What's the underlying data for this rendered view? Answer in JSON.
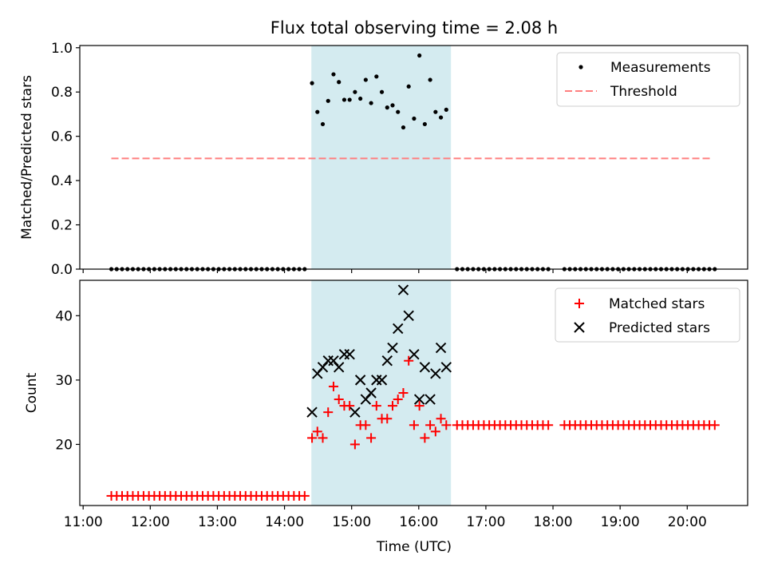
{
  "chart_data": {
    "type": "scatter",
    "title": "Flux total observing time = 2.08 h",
    "xlabel": "Time (UTC)",
    "x_unit": "hours UTC",
    "xlim": [
      10.95,
      20.9
    ],
    "x_ticks": [
      {
        "value": 11,
        "label": "11:00"
      },
      {
        "value": 12,
        "label": "12:00"
      },
      {
        "value": 13,
        "label": "13:00"
      },
      {
        "value": 14,
        "label": "14:00"
      },
      {
        "value": 15,
        "label": "15:00"
      },
      {
        "value": 16,
        "label": "16:00"
      },
      {
        "value": 17,
        "label": "17:00"
      },
      {
        "value": 18,
        "label": "18:00"
      },
      {
        "value": 19,
        "label": "19:00"
      },
      {
        "value": 20,
        "label": "20:00"
      }
    ],
    "observing_window": {
      "start": 14.4,
      "end": 16.48,
      "color": "#d4ebf0"
    },
    "top_panel": {
      "ylabel": "Matched/Predicted stars",
      "ylim": [
        0.0,
        1.01
      ],
      "y_ticks": [
        "0.0",
        "0.2",
        "0.4",
        "0.6",
        "0.8",
        "1.0"
      ],
      "legend": [
        "Measurements",
        "Threshold"
      ],
      "threshold": {
        "value": 0.5,
        "x_start": 11.42,
        "x_end": 20.38,
        "color": "#ff7f7f"
      },
      "measurements": [
        [
          11.42,
          0
        ],
        [
          11.5,
          0
        ],
        [
          11.58,
          0
        ],
        [
          11.66,
          0
        ],
        [
          11.74,
          0
        ],
        [
          11.82,
          0
        ],
        [
          11.9,
          0
        ],
        [
          11.98,
          0
        ],
        [
          12.06,
          0
        ],
        [
          12.14,
          0
        ],
        [
          12.22,
          0
        ],
        [
          12.3,
          0
        ],
        [
          12.38,
          0
        ],
        [
          12.46,
          0
        ],
        [
          12.54,
          0
        ],
        [
          12.62,
          0
        ],
        [
          12.7,
          0
        ],
        [
          12.78,
          0
        ],
        [
          12.86,
          0
        ],
        [
          12.94,
          0
        ],
        [
          13.02,
          0
        ],
        [
          13.1,
          0
        ],
        [
          13.18,
          0
        ],
        [
          13.26,
          0
        ],
        [
          13.34,
          0
        ],
        [
          13.42,
          0
        ],
        [
          13.5,
          0
        ],
        [
          13.58,
          0
        ],
        [
          13.66,
          0
        ],
        [
          13.74,
          0
        ],
        [
          13.82,
          0
        ],
        [
          13.9,
          0
        ],
        [
          13.98,
          0
        ],
        [
          14.06,
          0
        ],
        [
          14.14,
          0
        ],
        [
          14.22,
          0
        ],
        [
          14.3,
          0
        ],
        [
          14.41,
          0.84
        ],
        [
          14.49,
          0.71
        ],
        [
          14.57,
          0.655
        ],
        [
          14.65,
          0.76
        ],
        [
          14.73,
          0.88
        ],
        [
          14.81,
          0.845
        ],
        [
          14.89,
          0.765
        ],
        [
          14.97,
          0.765
        ],
        [
          15.05,
          0.8
        ],
        [
          15.13,
          0.77
        ],
        [
          15.21,
          0.855
        ],
        [
          15.29,
          0.75
        ],
        [
          15.37,
          0.87
        ],
        [
          15.45,
          0.8
        ],
        [
          15.53,
          0.73
        ],
        [
          15.61,
          0.74
        ],
        [
          15.69,
          0.71
        ],
        [
          15.77,
          0.64
        ],
        [
          15.85,
          0.825
        ],
        [
          15.93,
          0.68
        ],
        [
          16.01,
          0.965
        ],
        [
          16.09,
          0.655
        ],
        [
          16.17,
          0.855
        ],
        [
          16.25,
          0.71
        ],
        [
          16.33,
          0.685
        ],
        [
          16.41,
          0.72
        ],
        [
          16.57,
          0
        ],
        [
          16.65,
          0
        ],
        [
          16.73,
          0
        ],
        [
          16.81,
          0
        ],
        [
          16.89,
          0
        ],
        [
          16.97,
          0
        ],
        [
          17.05,
          0
        ],
        [
          17.13,
          0
        ],
        [
          17.21,
          0
        ],
        [
          17.29,
          0
        ],
        [
          17.37,
          0
        ],
        [
          17.45,
          0
        ],
        [
          17.53,
          0
        ],
        [
          17.61,
          0
        ],
        [
          17.69,
          0
        ],
        [
          17.77,
          0
        ],
        [
          17.85,
          0
        ],
        [
          17.93,
          0
        ],
        [
          18.17,
          0
        ],
        [
          18.25,
          0
        ],
        [
          18.33,
          0
        ],
        [
          18.41,
          0
        ],
        [
          18.49,
          0
        ],
        [
          18.57,
          0
        ],
        [
          18.65,
          0
        ],
        [
          18.73,
          0
        ],
        [
          18.81,
          0
        ],
        [
          18.89,
          0
        ],
        [
          18.97,
          0
        ],
        [
          19.05,
          0
        ],
        [
          19.13,
          0
        ],
        [
          19.21,
          0
        ],
        [
          19.29,
          0
        ],
        [
          19.37,
          0
        ],
        [
          19.45,
          0
        ],
        [
          19.53,
          0
        ],
        [
          19.61,
          0
        ],
        [
          19.69,
          0
        ],
        [
          19.77,
          0
        ],
        [
          19.85,
          0
        ],
        [
          19.93,
          0
        ],
        [
          20.01,
          0
        ],
        [
          20.09,
          0
        ],
        [
          20.17,
          0
        ],
        [
          20.25,
          0
        ],
        [
          20.33,
          0
        ],
        [
          20.41,
          0
        ]
      ]
    },
    "bottom_panel": {
      "ylabel": "Count",
      "ylim": [
        10.5,
        45.5
      ],
      "y_ticks": [
        {
          "value": 20,
          "label": "20"
        },
        {
          "value": 30,
          "label": "30"
        },
        {
          "value": 40,
          "label": "40"
        }
      ],
      "legend": [
        "Matched stars",
        "Predicted stars"
      ],
      "series": [
        {
          "name": "Matched stars",
          "marker": "+",
          "color": "#ff0000",
          "runs": [
            {
              "start": 11.42,
              "end": 14.3,
              "step": 0.08,
              "value": 12
            },
            {
              "start": 16.57,
              "end": 17.93,
              "step": 0.08,
              "value": 23
            },
            {
              "start": 18.17,
              "end": 20.41,
              "step": 0.08,
              "value": 23
            }
          ],
          "points": [
            [
              14.41,
              21
            ],
            [
              14.49,
              22
            ],
            [
              14.57,
              21
            ],
            [
              14.65,
              25
            ],
            [
              14.73,
              29
            ],
            [
              14.81,
              27
            ],
            [
              14.89,
              26
            ],
            [
              14.97,
              26
            ],
            [
              15.05,
              20
            ],
            [
              15.13,
              23
            ],
            [
              15.21,
              23
            ],
            [
              15.29,
              21
            ],
            [
              15.37,
              26
            ],
            [
              15.45,
              24
            ],
            [
              15.53,
              24
            ],
            [
              15.61,
              26
            ],
            [
              15.69,
              27
            ],
            [
              15.77,
              28
            ],
            [
              15.85,
              33
            ],
            [
              15.93,
              23
            ],
            [
              16.01,
              26
            ],
            [
              16.09,
              21
            ],
            [
              16.17,
              23
            ],
            [
              16.25,
              22
            ],
            [
              16.33,
              24
            ],
            [
              16.41,
              23
            ]
          ]
        },
        {
          "name": "Predicted stars",
          "marker": "x",
          "color": "#000000",
          "points": [
            [
              14.41,
              25
            ],
            [
              14.49,
              31
            ],
            [
              14.57,
              32
            ],
            [
              14.65,
              33
            ],
            [
              14.73,
              33
            ],
            [
              14.81,
              32
            ],
            [
              14.89,
              34
            ],
            [
              14.97,
              34
            ],
            [
              15.05,
              25
            ],
            [
              15.13,
              30
            ],
            [
              15.21,
              27
            ],
            [
              15.29,
              28
            ],
            [
              15.37,
              30
            ],
            [
              15.45,
              30
            ],
            [
              15.53,
              33
            ],
            [
              15.61,
              35
            ],
            [
              15.69,
              38
            ],
            [
              15.77,
              44
            ],
            [
              15.85,
              40
            ],
            [
              15.93,
              34
            ],
            [
              16.01,
              27
            ],
            [
              16.09,
              32
            ],
            [
              16.17,
              27
            ],
            [
              16.25,
              31
            ],
            [
              16.33,
              35
            ],
            [
              16.41,
              32
            ]
          ]
        }
      ]
    }
  }
}
